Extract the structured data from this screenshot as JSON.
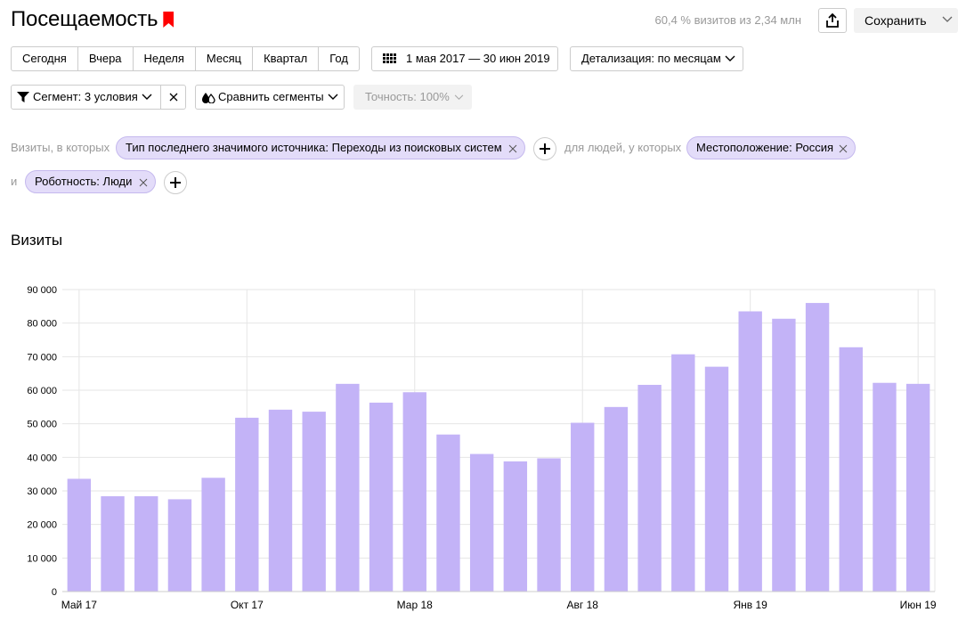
{
  "header": {
    "title": "Посещаемость",
    "summary": "60,4 % визитов из 2,34 млн",
    "save_label": "Сохранить"
  },
  "periods": [
    "Сегодня",
    "Вчера",
    "Неделя",
    "Месяц",
    "Квартал",
    "Год"
  ],
  "date_range": "1 мая 2017 — 30 июн 2019",
  "detail": "Детализация: по месяцам",
  "segment": "Сегмент: 3 условия",
  "compare": "Сравнить сегменты",
  "accuracy": "Точность: 100%",
  "filters": {
    "visits_label": "Визиты, в которых",
    "chip_source": "Тип последнего значимого источника: Переходы из поисковых систем",
    "people_label": "для людей, у которых",
    "chip_location": "Местоположение: Россия",
    "and_label": "и",
    "chip_robots": "Роботность: Люди"
  },
  "colors": {
    "bar": "#c3b3f7",
    "accent": "#ff0000",
    "grid": "#e6e6e6"
  },
  "chart_data": {
    "type": "bar",
    "title": "Визиты",
    "categories": [
      "Май 17",
      "Июн 17",
      "Июл 17",
      "Авг 17",
      "Сен 17",
      "Окт 17",
      "Ноя 17",
      "Дек 17",
      "Янв 18",
      "Фев 18",
      "Мар 18",
      "Апр 18",
      "Май 18",
      "Июн 18",
      "Июл 18",
      "Авг 18",
      "Сен 18",
      "Окт 18",
      "Ноя 18",
      "Дек 18",
      "Янв 19",
      "Фев 19",
      "Мар 19",
      "Апр 19",
      "Май 19",
      "Июн 19"
    ],
    "values": [
      33600,
      28400,
      28400,
      27500,
      33900,
      51800,
      54200,
      53600,
      61900,
      56300,
      59400,
      46800,
      41000,
      38800,
      39700,
      50300,
      55000,
      61600,
      70700,
      67000,
      83500,
      81300,
      86000,
      72800,
      62200,
      61900
    ],
    "x_tick_labels": [
      "Май 17",
      "Окт 17",
      "Мар 18",
      "Авг 18",
      "Янв 19",
      "Июн 19"
    ],
    "y_ticks": [
      "0",
      "10 000",
      "20 000",
      "30 000",
      "40 000",
      "50 000",
      "60 000",
      "70 000",
      "80 000",
      "90 000"
    ],
    "ylim": [
      0,
      90000
    ],
    "grid": true
  }
}
